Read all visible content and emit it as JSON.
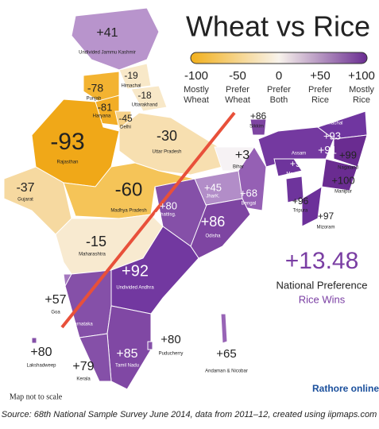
{
  "title": "Wheat vs Rice",
  "legend": {
    "colors": [
      "#f2b01c",
      "#f8f3ec",
      "#6a2c91"
    ],
    "ticks": [
      {
        "label": "-100",
        "caption": "Mostly Wheat"
      },
      {
        "label": "-50",
        "caption": "Prefer Wheat"
      },
      {
        "label": "0",
        "caption": "Prefer Both"
      },
      {
        "label": "+50",
        "caption": "Prefer Rice"
      },
      {
        "label": "+100",
        "caption": "Mostly Rice"
      }
    ]
  },
  "regions": [
    {
      "name": "Undivided Jammu Kashmir",
      "value": "+41",
      "color": "#b894cc"
    },
    {
      "name": "Himachal",
      "value": "-19",
      "color": "#f8e8c8"
    },
    {
      "name": "Punjab",
      "value": "-78",
      "color": "#f3b331"
    },
    {
      "name": "Uttarakhand",
      "value": "-18",
      "color": "#f8e8c8"
    },
    {
      "name": "Haryana",
      "value": "-81",
      "color": "#f2ad25"
    },
    {
      "name": "Delhi",
      "value": "-45",
      "color": "#f6d28a"
    },
    {
      "name": "Rajasthan",
      "value": "-93",
      "color": "#f0a818"
    },
    {
      "name": "Uttar Pradesh",
      "value": "-30",
      "color": "#f7dfb0"
    },
    {
      "name": "Bihar",
      "value": "+3",
      "color": "#f6f2f4"
    },
    {
      "name": "Sikkim",
      "value": "+86",
      "color": "#7e45a2"
    },
    {
      "name": "Assam",
      "value": "+91",
      "color": "#7439a0"
    },
    {
      "name": "Arunachal",
      "value": "+93",
      "color": "#7036a0"
    },
    {
      "name": "Meghalaya",
      "value": "+95",
      "color": "#6e349c"
    },
    {
      "name": "Nagaland",
      "value": "+99",
      "color": "#6a2c91"
    },
    {
      "name": "Manipur",
      "value": "+100",
      "color": "#6a2c91"
    },
    {
      "name": "Tripura",
      "value": "+96",
      "color": "#6e349c"
    },
    {
      "name": "Mizoram",
      "value": "+97",
      "color": "#6c309a"
    },
    {
      "name": "Bengal",
      "value": "+68",
      "color": "#9560b4"
    },
    {
      "name": "JharK.",
      "value": "+45",
      "color": "#b28dc8"
    },
    {
      "name": "Chhattisg.",
      "value": "+80",
      "color": "#8550a8"
    },
    {
      "name": "Odisha",
      "value": "+86",
      "color": "#7e45a2"
    },
    {
      "name": "Gujarat",
      "value": "-37",
      "color": "#f6d9a0"
    },
    {
      "name": "Madhya Pradesh",
      "value": "-60",
      "color": "#f5c458"
    },
    {
      "name": "Maharashtra",
      "value": "-15",
      "color": "#f8ead0"
    },
    {
      "name": "Goa",
      "value": "+57",
      "color": "#a478bf"
    },
    {
      "name": "Undivided Andhra",
      "value": "+92",
      "color": "#7238a0"
    },
    {
      "name": "Karnataka",
      "color": "#8550a8"
    },
    {
      "name": "Tamil Nadu",
      "value": "+85",
      "color": "#8048a4"
    },
    {
      "name": "Kerala",
      "value": "+79",
      "color": "#8550a8"
    },
    {
      "name": "Puducherry",
      "value": "+80",
      "color": "#8550a8"
    },
    {
      "name": "Lakshadweep",
      "value": "+80",
      "color": "#8550a8"
    },
    {
      "name": "Andaman & Nicobar",
      "value": "+65",
      "color": "#9864b6"
    }
  ],
  "national": {
    "value": "+13.48",
    "label": "National Preference",
    "verdict": "Rice Wins"
  },
  "note": "Map not to scale",
  "logo": "Rathore online",
  "source": "Source: 68th National Sample Survey June 2014, data from 2011–12, created using iipmaps.com"
}
